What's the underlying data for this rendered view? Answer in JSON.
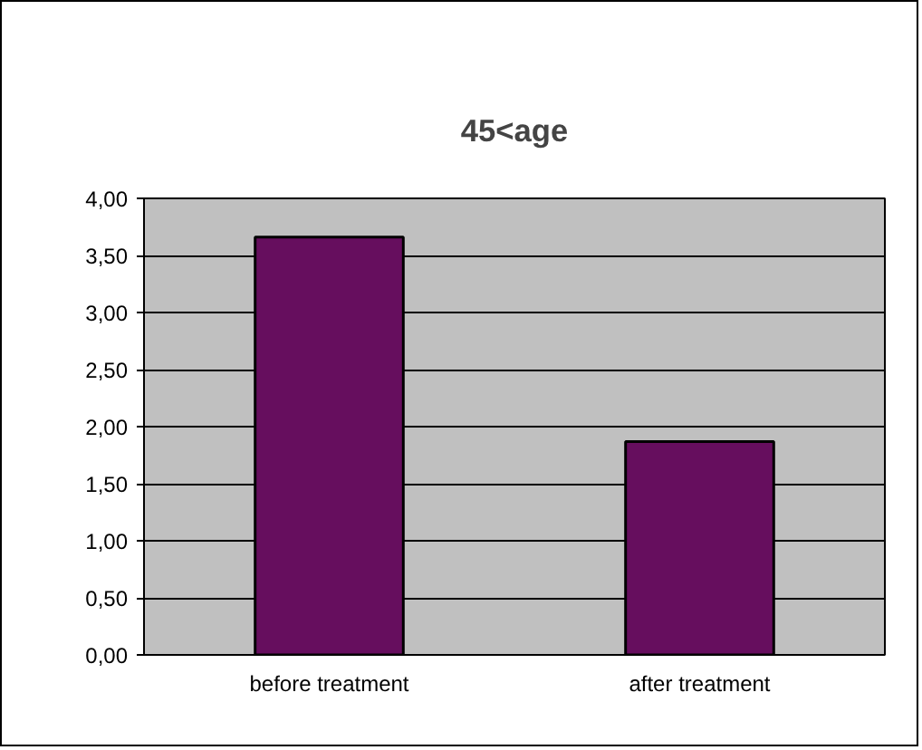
{
  "chart_data": {
    "type": "bar",
    "title": "45<age",
    "categories": [
      "before treatment",
      "after treatment"
    ],
    "values": [
      3.66,
      1.87
    ],
    "color": "#660e5e",
    "ylim": [
      0,
      4
    ],
    "yticks": [
      {
        "value": 0,
        "label": "0,00"
      },
      {
        "value": 0.5,
        "label": "0,50"
      },
      {
        "value": 1,
        "label": "1,00"
      },
      {
        "value": 1.5,
        "label": "1,50"
      },
      {
        "value": 2,
        "label": "2,00"
      },
      {
        "value": 2.5,
        "label": "2,50"
      },
      {
        "value": 3,
        "label": "3,00"
      },
      {
        "value": 3.5,
        "label": "3,50"
      },
      {
        "value": 4,
        "label": "4,00"
      }
    ],
    "grid": "y"
  }
}
